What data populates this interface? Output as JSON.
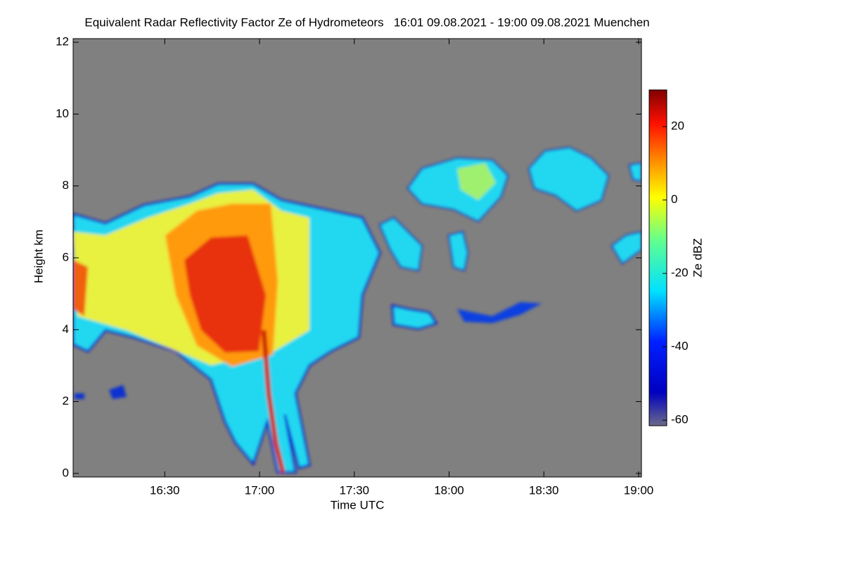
{
  "chart_data": {
    "type": "heatmap",
    "title": "Equivalent Radar Reflectivity Factor Ze of Hydrometeors   16:01 09.08.2021 - 19:00 09.08.2021 Muenchen",
    "x_label": "Time UTC",
    "y_label": "Height km",
    "xlim": [
      "16:01",
      "19:00"
    ],
    "xticks": [
      "16:30",
      "17:00",
      "17:30",
      "18:00",
      "18:30",
      "19:00"
    ],
    "ylim": [
      -0.1,
      12.1
    ],
    "yticks": [
      0,
      2,
      4,
      6,
      8,
      10,
      12
    ],
    "colorbar": {
      "label": "Ze dBZ",
      "lim": [
        -61.5,
        30
      ],
      "ticks": [
        -60,
        -40,
        -20,
        0,
        20
      ]
    }
  }
}
